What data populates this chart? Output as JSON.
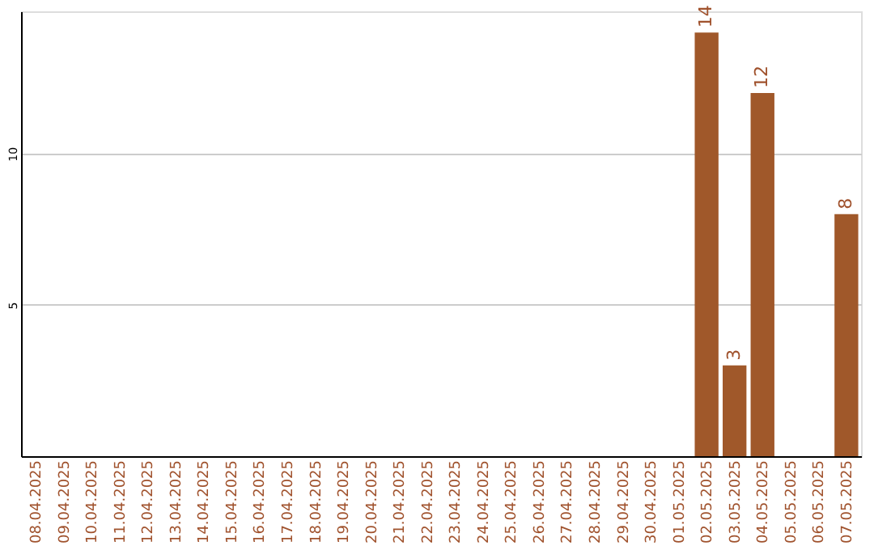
{
  "chart_data": {
    "type": "bar",
    "categories": [
      "08.04.2025",
      "09.04.2025",
      "10.04.2025",
      "11.04.2025",
      "12.04.2025",
      "13.04.2025",
      "14.04.2025",
      "15.04.2025",
      "16.04.2025",
      "17.04.2025",
      "18.04.2025",
      "19.04.2025",
      "20.04.2025",
      "21.04.2025",
      "22.04.2025",
      "23.04.2025",
      "24.04.2025",
      "25.04.2025",
      "26.04.2025",
      "27.04.2025",
      "28.04.2025",
      "29.04.2025",
      "30.04.2025",
      "01.05.2025",
      "02.05.2025",
      "03.05.2025",
      "04.05.2025",
      "05.05.2025",
      "06.05.2025",
      "07.05.2025"
    ],
    "values": [
      0,
      0,
      0,
      0,
      0,
      0,
      0,
      0,
      0,
      0,
      0,
      0,
      0,
      0,
      0,
      0,
      0,
      0,
      0,
      0,
      0,
      0,
      0,
      0,
      14,
      3,
      12,
      0,
      0,
      8
    ],
    "value_labels": [
      null,
      null,
      null,
      null,
      null,
      null,
      null,
      null,
      null,
      null,
      null,
      null,
      null,
      null,
      null,
      null,
      null,
      null,
      null,
      null,
      null,
      null,
      null,
      null,
      "14",
      "3",
      "12",
      null,
      null,
      "8"
    ],
    "color": "#a0582a",
    "ylim": [
      0,
      14.7
    ],
    "yticks": [
      5,
      10
    ],
    "grid": "y"
  }
}
